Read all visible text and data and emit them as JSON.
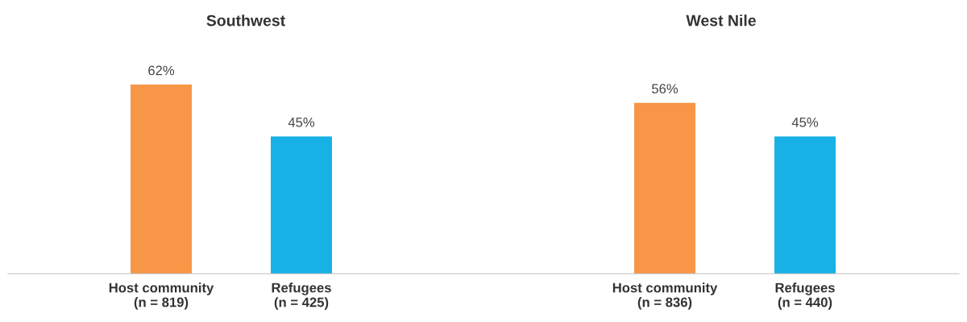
{
  "chart_data": [
    {
      "type": "bar",
      "title": "Southwest",
      "categories": [
        "Host community\n(n = 819)",
        "Refugees\n(n = 425)"
      ],
      "values": [
        62,
        45
      ],
      "colors": [
        "#f79646",
        "#17b1e6"
      ],
      "value_labels": [
        "62%",
        "45%"
      ],
      "grid": false,
      "legend": false,
      "tick_labels": "x"
    },
    {
      "type": "bar",
      "title": "West Nile",
      "categories": [
        "Host community\n(n = 836)",
        "Refugees\n(n = 440)"
      ],
      "values": [
        56,
        45
      ],
      "colors": [
        "#f79646",
        "#17b1e6"
      ],
      "value_labels": [
        "56%",
        "45%"
      ],
      "grid": false,
      "legend": false,
      "tick_labels": "x"
    }
  ]
}
